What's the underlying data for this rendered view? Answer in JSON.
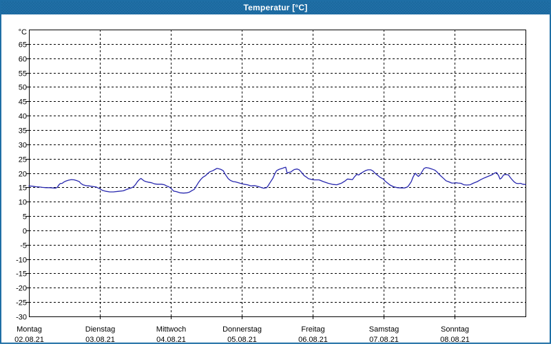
{
  "window": {
    "title": "Temperatur [°C]",
    "titlebar_color": "#1E6EA5",
    "border_color": "#1E6EA5",
    "background_color": "#FFFFFF"
  },
  "chart_data": {
    "type": "line",
    "title": "Temperatur [°C]",
    "y_unit_label": "°C",
    "ylim": [
      -30,
      70
    ],
    "y_tick_step": 5,
    "y_ticks": [
      65,
      60,
      55,
      50,
      45,
      40,
      35,
      30,
      25,
      20,
      15,
      10,
      5,
      0,
      -5,
      -10,
      -15,
      -20,
      -25,
      -30
    ],
    "xlim_days": [
      0,
      7
    ],
    "grid": "dashed",
    "grid_color": "#000000",
    "frame_color": "#000000",
    "line_color": "#2626AE",
    "x_days": [
      {
        "weekday": "Montag",
        "date": "02.08.21"
      },
      {
        "weekday": "Dienstag",
        "date": "03.08.21"
      },
      {
        "weekday": "Mittwoch",
        "date": "04.08.21"
      },
      {
        "weekday": "Donnerstag",
        "date": "05.08.21"
      },
      {
        "weekday": "Freitag",
        "date": "06.08.21"
      },
      {
        "weekday": "Samstag",
        "date": "07.08.21"
      },
      {
        "weekday": "Sonntag",
        "date": "08.08.21"
      }
    ],
    "series": [
      {
        "name": "Temperatur",
        "unit": "°C",
        "points": [
          [
            0.0,
            15.5
          ],
          [
            0.05,
            15.4
          ],
          [
            0.1,
            15.2
          ],
          [
            0.15,
            15.1
          ],
          [
            0.19,
            15.0
          ],
          [
            0.24,
            14.9
          ],
          [
            0.29,
            14.9
          ],
          [
            0.34,
            14.8
          ],
          [
            0.37,
            14.7
          ],
          [
            0.4,
            15.0
          ],
          [
            0.42,
            15.8
          ],
          [
            0.44,
            16.3
          ],
          [
            0.47,
            16.4
          ],
          [
            0.49,
            16.8
          ],
          [
            0.52,
            17.2
          ],
          [
            0.56,
            17.5
          ],
          [
            0.6,
            17.7
          ],
          [
            0.64,
            17.6
          ],
          [
            0.68,
            17.3
          ],
          [
            0.71,
            17.0
          ],
          [
            0.73,
            16.4
          ],
          [
            0.76,
            15.9
          ],
          [
            0.8,
            15.6
          ],
          [
            0.85,
            15.5
          ],
          [
            0.9,
            15.3
          ],
          [
            0.95,
            15.1
          ],
          [
            1.0,
            14.5
          ],
          [
            1.04,
            13.9
          ],
          [
            1.09,
            13.6
          ],
          [
            1.14,
            13.4
          ],
          [
            1.19,
            13.4
          ],
          [
            1.26,
            13.6
          ],
          [
            1.33,
            13.8
          ],
          [
            1.39,
            14.4
          ],
          [
            1.43,
            14.7
          ],
          [
            1.47,
            15.1
          ],
          [
            1.5,
            15.9
          ],
          [
            1.53,
            17.0
          ],
          [
            1.56,
            17.8
          ],
          [
            1.58,
            18.1
          ],
          [
            1.62,
            17.3
          ],
          [
            1.65,
            17.0
          ],
          [
            1.68,
            16.8
          ],
          [
            1.73,
            16.6
          ],
          [
            1.77,
            16.2
          ],
          [
            1.81,
            16.1
          ],
          [
            1.87,
            16.1
          ],
          [
            1.91,
            15.9
          ],
          [
            1.94,
            15.5
          ],
          [
            1.97,
            15.2
          ],
          [
            2.0,
            14.7
          ],
          [
            2.04,
            13.7
          ],
          [
            2.08,
            13.5
          ],
          [
            2.13,
            13.1
          ],
          [
            2.18,
            13.0
          ],
          [
            2.23,
            13.1
          ],
          [
            2.26,
            13.3
          ],
          [
            2.3,
            13.9
          ],
          [
            2.33,
            14.3
          ],
          [
            2.36,
            15.5
          ],
          [
            2.39,
            16.7
          ],
          [
            2.42,
            17.7
          ],
          [
            2.45,
            18.5
          ],
          [
            2.49,
            19.1
          ],
          [
            2.52,
            19.8
          ],
          [
            2.55,
            20.4
          ],
          [
            2.59,
            20.8
          ],
          [
            2.62,
            21.2
          ],
          [
            2.65,
            21.6
          ],
          [
            2.69,
            21.4
          ],
          [
            2.71,
            21.2
          ],
          [
            2.74,
            20.8
          ],
          [
            2.76,
            19.8
          ],
          [
            2.78,
            19.1
          ],
          [
            2.81,
            18.0
          ],
          [
            2.84,
            17.4
          ],
          [
            2.88,
            17.0
          ],
          [
            2.91,
            16.9
          ],
          [
            2.94,
            16.7
          ],
          [
            2.98,
            16.4
          ],
          [
            3.03,
            16.1
          ],
          [
            3.08,
            15.9
          ],
          [
            3.13,
            15.5
          ],
          [
            3.18,
            15.6
          ],
          [
            3.23,
            15.3
          ],
          [
            3.28,
            14.9
          ],
          [
            3.31,
            14.7
          ],
          [
            3.35,
            14.9
          ],
          [
            3.37,
            15.5
          ],
          [
            3.4,
            16.7
          ],
          [
            3.44,
            18.2
          ],
          [
            3.47,
            19.9
          ],
          [
            3.49,
            20.8
          ],
          [
            3.52,
            21.2
          ],
          [
            3.54,
            21.4
          ],
          [
            3.57,
            21.6
          ],
          [
            3.6,
            21.9
          ],
          [
            3.62,
            22.0
          ],
          [
            3.64,
            19.9
          ],
          [
            3.66,
            20.2
          ],
          [
            3.69,
            20.3
          ],
          [
            3.71,
            20.7
          ],
          [
            3.74,
            21.2
          ],
          [
            3.78,
            21.4
          ],
          [
            3.81,
            21.1
          ],
          [
            3.84,
            20.3
          ],
          [
            3.88,
            19.1
          ],
          [
            3.91,
            18.6
          ],
          [
            3.94,
            18.0
          ],
          [
            3.98,
            17.8
          ],
          [
            4.02,
            17.6
          ],
          [
            4.09,
            17.6
          ],
          [
            4.15,
            17.0
          ],
          [
            4.22,
            16.4
          ],
          [
            4.29,
            16.0
          ],
          [
            4.34,
            15.9
          ],
          [
            4.41,
            16.5
          ],
          [
            4.46,
            17.3
          ],
          [
            4.49,
            17.9
          ],
          [
            4.53,
            17.8
          ],
          [
            4.56,
            17.7
          ],
          [
            4.59,
            18.7
          ],
          [
            4.62,
            19.5
          ],
          [
            4.65,
            19.3
          ],
          [
            4.68,
            19.9
          ],
          [
            4.72,
            20.5
          ],
          [
            4.75,
            20.9
          ],
          [
            4.78,
            21.1
          ],
          [
            4.82,
            21.1
          ],
          [
            4.85,
            20.7
          ],
          [
            4.88,
            19.9
          ],
          [
            4.92,
            19.1
          ],
          [
            4.95,
            18.5
          ],
          [
            4.98,
            18.1
          ],
          [
            5.0,
            17.8
          ],
          [
            5.02,
            17.2
          ],
          [
            5.06,
            16.4
          ],
          [
            5.09,
            15.8
          ],
          [
            5.14,
            15.2
          ],
          [
            5.19,
            14.9
          ],
          [
            5.25,
            14.8
          ],
          [
            5.3,
            14.8
          ],
          [
            5.34,
            15.2
          ],
          [
            5.36,
            15.9
          ],
          [
            5.39,
            17.0
          ],
          [
            5.41,
            18.3
          ],
          [
            5.43,
            19.3
          ],
          [
            5.45,
            19.9
          ],
          [
            5.47,
            19.2
          ],
          [
            5.49,
            18.8
          ],
          [
            5.52,
            19.6
          ],
          [
            5.55,
            20.8
          ],
          [
            5.57,
            21.6
          ],
          [
            5.6,
            21.9
          ],
          [
            5.64,
            21.7
          ],
          [
            5.68,
            21.4
          ],
          [
            5.72,
            21.0
          ],
          [
            5.75,
            20.4
          ],
          [
            5.78,
            19.6
          ],
          [
            5.81,
            18.9
          ],
          [
            5.85,
            18.0
          ],
          [
            5.88,
            17.3
          ],
          [
            5.92,
            16.9
          ],
          [
            5.96,
            16.5
          ],
          [
            6.0,
            16.5
          ],
          [
            6.02,
            16.6
          ],
          [
            6.05,
            16.5
          ],
          [
            6.09,
            16.4
          ],
          [
            6.13,
            15.9
          ],
          [
            6.17,
            15.8
          ],
          [
            6.22,
            15.9
          ],
          [
            6.26,
            16.4
          ],
          [
            6.32,
            17.0
          ],
          [
            6.37,
            17.7
          ],
          [
            6.42,
            18.3
          ],
          [
            6.47,
            18.8
          ],
          [
            6.52,
            19.3
          ],
          [
            6.56,
            19.9
          ],
          [
            6.59,
            20.2
          ],
          [
            6.62,
            19.1
          ],
          [
            6.64,
            17.9
          ],
          [
            6.66,
            18.2
          ],
          [
            6.69,
            19.3
          ],
          [
            6.72,
            19.5
          ],
          [
            6.76,
            19.3
          ],
          [
            6.78,
            18.6
          ],
          [
            6.81,
            17.7
          ],
          [
            6.84,
            16.9
          ],
          [
            6.87,
            16.4
          ],
          [
            6.9,
            16.3
          ],
          [
            6.93,
            16.4
          ],
          [
            6.96,
            16.1
          ],
          [
            7.0,
            16.0
          ]
        ]
      }
    ]
  }
}
